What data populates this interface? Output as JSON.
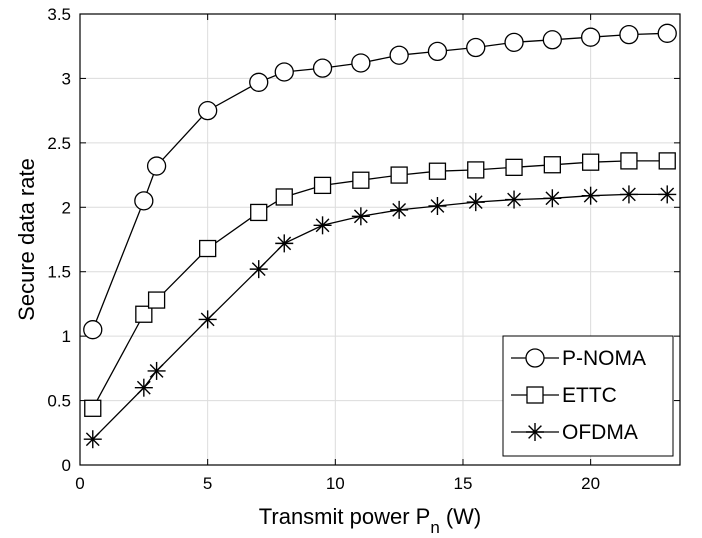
{
  "chart_data": {
    "type": "line",
    "xlabel": "Transmit power P",
    "xlabel_subscript": "n",
    "xlabel_unit": "(W)",
    "ylabel": "Secure data rate",
    "xlim": [
      0,
      23.5
    ],
    "ylim": [
      0,
      3.5
    ],
    "xticks": [
      0,
      5,
      10,
      15,
      20
    ],
    "yticks": [
      0,
      0.5,
      1,
      1.5,
      2,
      2.5,
      3,
      3.5
    ],
    "xtick_labels": [
      "0",
      "5",
      "10",
      "15",
      "20"
    ],
    "ytick_labels": [
      "0",
      "0.5",
      "1",
      "1.5",
      "2",
      "2.5",
      "3",
      "3.5"
    ],
    "grid": true,
    "legend_position": "bottom-right",
    "series": [
      {
        "name": "P-NOMA",
        "marker": "circle",
        "x": [
          0.5,
          2.5,
          3,
          5,
          7,
          8,
          9.5,
          11,
          12.5,
          14,
          15.5,
          17,
          18.5,
          20,
          21.5,
          23
        ],
        "y": [
          1.05,
          2.05,
          2.32,
          2.75,
          2.97,
          3.05,
          3.08,
          3.12,
          3.18,
          3.21,
          3.24,
          3.28,
          3.3,
          3.32,
          3.34,
          3.35
        ]
      },
      {
        "name": "ETTC",
        "marker": "square",
        "x": [
          0.5,
          2.5,
          3,
          5,
          7,
          8,
          9.5,
          11,
          12.5,
          14,
          15.5,
          17,
          18.5,
          20,
          21.5,
          23
        ],
        "y": [
          0.44,
          1.17,
          1.28,
          1.68,
          1.96,
          2.08,
          2.17,
          2.21,
          2.25,
          2.28,
          2.29,
          2.31,
          2.33,
          2.35,
          2.36,
          2.36
        ]
      },
      {
        "name": "OFDMA",
        "marker": "asterisk",
        "x": [
          0.5,
          2.5,
          3,
          5,
          7,
          8,
          9.5,
          11,
          12.5,
          14,
          15.5,
          17,
          18.5,
          20,
          21.5,
          23
        ],
        "y": [
          0.2,
          0.6,
          0.73,
          1.13,
          1.52,
          1.72,
          1.86,
          1.93,
          1.98,
          2.01,
          2.04,
          2.06,
          2.07,
          2.09,
          2.1,
          2.1
        ]
      }
    ]
  }
}
